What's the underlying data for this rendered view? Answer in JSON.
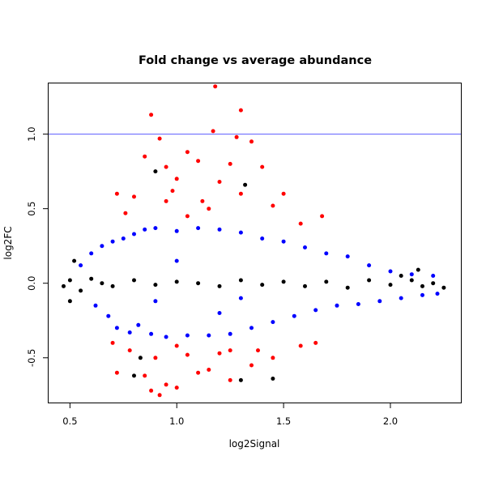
{
  "chart_data": {
    "type": "scatter",
    "title": "Fold change vs average abundance",
    "xlabel": "log2Signal",
    "ylabel": "log2FC",
    "xlim": [
      0.4,
      2.33
    ],
    "ylim": [
      -0.8,
      1.34
    ],
    "x_ticks": [
      0.5,
      1.0,
      1.5,
      2.0
    ],
    "x_tick_labels": [
      "0.5",
      "1.0",
      "1.5",
      "2.0"
    ],
    "y_ticks": [
      -0.5,
      0.0,
      0.5,
      1.0
    ],
    "y_tick_labels": [
      "-0.5",
      "0.0",
      "0.5",
      "1.0"
    ],
    "grid": false,
    "legend": "none",
    "reference_line": {
      "y": 1.0,
      "color": "#5b5bff"
    },
    "colors": {
      "not_significant": "#000000",
      "significant": "#0000ff",
      "large_change": "#ff0000"
    },
    "series": [
      {
        "color": "#0000ff",
        "points": [
          [
            0.55,
            0.12
          ],
          [
            0.6,
            0.2
          ],
          [
            0.62,
            -0.15
          ],
          [
            0.65,
            0.25
          ],
          [
            0.68,
            -0.22
          ],
          [
            0.7,
            0.28
          ],
          [
            0.72,
            -0.3
          ],
          [
            0.75,
            0.3
          ],
          [
            0.78,
            -0.33
          ],
          [
            0.8,
            0.33
          ],
          [
            0.82,
            -0.28
          ],
          [
            0.85,
            0.36
          ],
          [
            0.88,
            -0.34
          ],
          [
            0.9,
            0.37
          ],
          [
            0.95,
            -0.36
          ],
          [
            1.0,
            0.35
          ],
          [
            1.05,
            -0.35
          ],
          [
            1.1,
            0.37
          ],
          [
            1.15,
            -0.35
          ],
          [
            1.2,
            0.36
          ],
          [
            1.25,
            -0.34
          ],
          [
            1.3,
            0.34
          ],
          [
            1.35,
            -0.3
          ],
          [
            1.4,
            0.3
          ],
          [
            1.45,
            -0.26
          ],
          [
            1.5,
            0.28
          ],
          [
            1.55,
            -0.22
          ],
          [
            1.6,
            0.24
          ],
          [
            1.65,
            -0.18
          ],
          [
            1.7,
            0.2
          ],
          [
            1.75,
            -0.15
          ],
          [
            1.8,
            0.18
          ],
          [
            1.85,
            -0.14
          ],
          [
            1.9,
            0.12
          ],
          [
            1.95,
            -0.12
          ],
          [
            2.0,
            0.08
          ],
          [
            2.05,
            -0.1
          ],
          [
            2.1,
            0.06
          ],
          [
            2.15,
            -0.08
          ],
          [
            2.2,
            0.05
          ],
          [
            2.22,
            -0.07
          ],
          [
            1.3,
            -0.1
          ],
          [
            1.0,
            0.15
          ],
          [
            1.2,
            -0.2
          ],
          [
            0.9,
            -0.12
          ]
        ]
      },
      {
        "color": "#000000",
        "points": [
          [
            0.47,
            -0.02
          ],
          [
            0.5,
            0.02
          ],
          [
            0.55,
            -0.05
          ],
          [
            0.6,
            0.03
          ],
          [
            0.65,
            0.0
          ],
          [
            0.7,
            -0.02
          ],
          [
            0.8,
            0.02
          ],
          [
            0.9,
            -0.01
          ],
          [
            1.0,
            0.01
          ],
          [
            1.1,
            0.0
          ],
          [
            1.2,
            -0.02
          ],
          [
            1.3,
            0.02
          ],
          [
            1.4,
            -0.01
          ],
          [
            1.5,
            0.01
          ],
          [
            1.6,
            -0.02
          ],
          [
            1.7,
            0.01
          ],
          [
            1.8,
            -0.03
          ],
          [
            1.9,
            0.02
          ],
          [
            2.0,
            -0.01
          ],
          [
            2.05,
            0.05
          ],
          [
            2.1,
            0.02
          ],
          [
            2.15,
            -0.02
          ],
          [
            2.2,
            0.0
          ],
          [
            2.25,
            -0.03
          ],
          [
            0.9,
            0.75
          ],
          [
            1.32,
            0.66
          ],
          [
            1.45,
            -0.64
          ],
          [
            1.3,
            -0.65
          ],
          [
            0.8,
            -0.62
          ],
          [
            0.83,
            -0.5
          ],
          [
            2.13,
            0.09
          ],
          [
            0.5,
            -0.12
          ],
          [
            0.52,
            0.15
          ]
        ]
      },
      {
        "color": "#ff0000",
        "points": [
          [
            1.18,
            1.32
          ],
          [
            1.3,
            1.16
          ],
          [
            0.88,
            1.13
          ],
          [
            1.17,
            1.02
          ],
          [
            1.28,
            0.98
          ],
          [
            0.92,
            0.97
          ],
          [
            1.35,
            0.95
          ],
          [
            1.05,
            0.88
          ],
          [
            0.85,
            0.85
          ],
          [
            1.1,
            0.82
          ],
          [
            1.25,
            0.8
          ],
          [
            0.95,
            0.78
          ],
          [
            1.4,
            0.78
          ],
          [
            1.0,
            0.7
          ],
          [
            1.2,
            0.68
          ],
          [
            0.98,
            0.62
          ],
          [
            1.3,
            0.6
          ],
          [
            1.5,
            0.6
          ],
          [
            0.8,
            0.58
          ],
          [
            1.12,
            0.55
          ],
          [
            1.45,
            0.52
          ],
          [
            0.76,
            0.47
          ],
          [
            1.05,
            0.45
          ],
          [
            1.68,
            0.45
          ],
          [
            1.58,
            0.4
          ],
          [
            0.72,
            0.6
          ],
          [
            0.95,
            0.55
          ],
          [
            1.15,
            0.5
          ],
          [
            0.92,
            -0.75
          ],
          [
            0.88,
            -0.72
          ],
          [
            1.0,
            -0.7
          ],
          [
            0.95,
            -0.68
          ],
          [
            1.25,
            -0.65
          ],
          [
            0.85,
            -0.62
          ],
          [
            1.1,
            -0.6
          ],
          [
            0.72,
            -0.6
          ],
          [
            1.15,
            -0.58
          ],
          [
            1.35,
            -0.55
          ],
          [
            0.9,
            -0.5
          ],
          [
            1.05,
            -0.48
          ],
          [
            1.2,
            -0.47
          ],
          [
            1.45,
            -0.5
          ],
          [
            0.78,
            -0.45
          ],
          [
            1.38,
            -0.45
          ],
          [
            1.58,
            -0.42
          ],
          [
            1.65,
            -0.4
          ],
          [
            0.7,
            -0.4
          ],
          [
            1.0,
            -0.42
          ],
          [
            1.25,
            -0.45
          ]
        ]
      }
    ]
  }
}
